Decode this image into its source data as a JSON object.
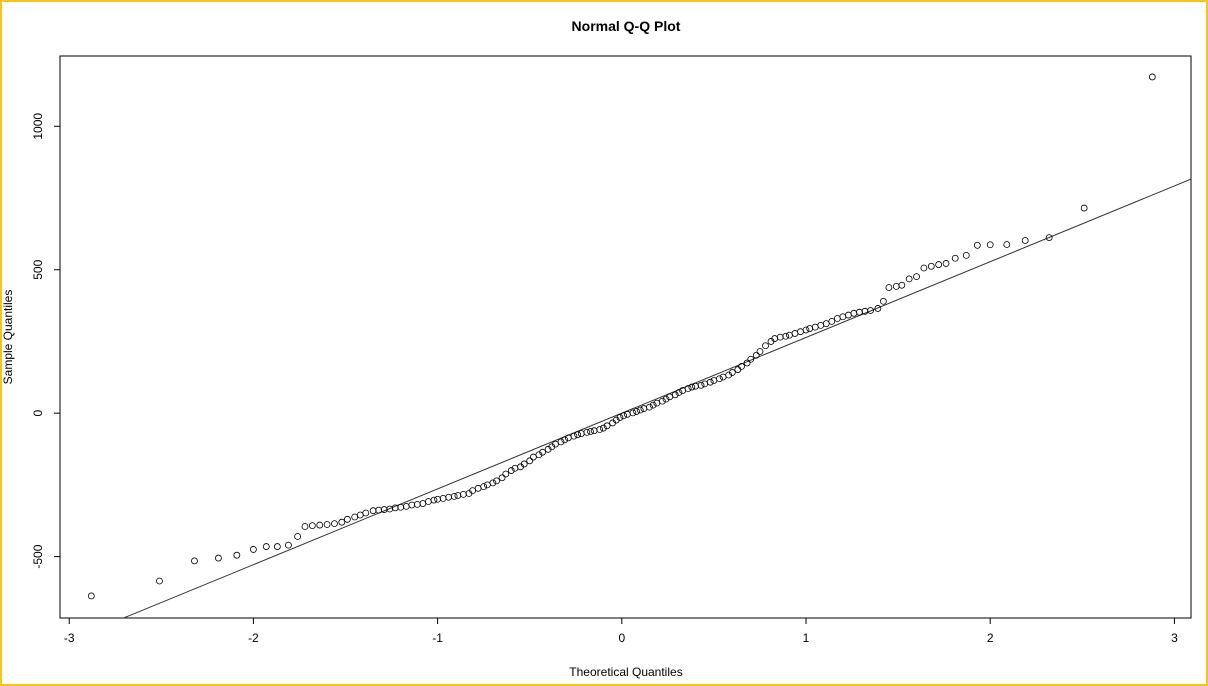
{
  "chart_data": {
    "type": "scatter",
    "title": "Normal Q-Q Plot",
    "xlabel": "Theoretical Quantiles",
    "ylabel": "Sample Quantiles",
    "xlim": [
      -3.05,
      3.09
    ],
    "ylim": [
      -714,
      1245
    ],
    "xticks": [
      -3,
      -2,
      -1,
      0,
      1,
      2,
      3
    ],
    "yticks": [
      -500,
      0,
      500,
      1000
    ],
    "grid": false,
    "legend": "none",
    "reference_line": {
      "intercept": 0,
      "slope": 264
    },
    "points": [
      [
        -2.88,
        -637
      ],
      [
        -2.51,
        -585
      ],
      [
        -2.32,
        -515
      ],
      [
        -2.19,
        -505
      ],
      [
        -2.09,
        -495
      ],
      [
        -2.0,
        -475
      ],
      [
        -1.93,
        -465
      ],
      [
        -1.87,
        -465
      ],
      [
        -1.81,
        -460
      ],
      [
        -1.76,
        -430
      ],
      [
        -1.72,
        -395
      ],
      [
        -1.68,
        -392
      ],
      [
        -1.64,
        -390
      ],
      [
        -1.6,
        -388
      ],
      [
        -1.56,
        -385
      ],
      [
        -1.52,
        -380
      ],
      [
        -1.49,
        -370
      ],
      [
        -1.45,
        -362
      ],
      [
        -1.42,
        -355
      ],
      [
        -1.39,
        -348
      ],
      [
        -1.35,
        -340
      ],
      [
        -1.32,
        -338
      ],
      [
        -1.29,
        -336
      ],
      [
        -1.26,
        -334
      ],
      [
        -1.23,
        -330
      ],
      [
        -1.2,
        -328
      ],
      [
        -1.17,
        -325
      ],
      [
        -1.14,
        -320
      ],
      [
        -1.11,
        -318
      ],
      [
        -1.08,
        -315
      ],
      [
        -1.05,
        -308
      ],
      [
        -1.02,
        -303
      ],
      [
        -1.0,
        -300
      ],
      [
        -0.97,
        -297
      ],
      [
        -0.94,
        -293
      ],
      [
        -0.91,
        -290
      ],
      [
        -0.89,
        -287
      ],
      [
        -0.86,
        -283
      ],
      [
        -0.83,
        -280
      ],
      [
        -0.81,
        -270
      ],
      [
        -0.78,
        -262
      ],
      [
        -0.75,
        -256
      ],
      [
        -0.73,
        -250
      ],
      [
        -0.7,
        -243
      ],
      [
        -0.68,
        -236
      ],
      [
        -0.65,
        -225
      ],
      [
        -0.63,
        -212
      ],
      [
        -0.6,
        -200
      ],
      [
        -0.58,
        -192
      ],
      [
        -0.55,
        -187
      ],
      [
        -0.53,
        -177
      ],
      [
        -0.5,
        -166
      ],
      [
        -0.48,
        -153
      ],
      [
        -0.45,
        -145
      ],
      [
        -0.43,
        -136
      ],
      [
        -0.4,
        -126
      ],
      [
        -0.38,
        -117
      ],
      [
        -0.36,
        -108
      ],
      [
        -0.33,
        -100
      ],
      [
        -0.31,
        -93
      ],
      [
        -0.29,
        -86
      ],
      [
        -0.26,
        -80
      ],
      [
        -0.24,
        -75
      ],
      [
        -0.22,
        -71
      ],
      [
        -0.19,
        -67
      ],
      [
        -0.17,
        -64
      ],
      [
        -0.15,
        -61
      ],
      [
        -0.12,
        -57
      ],
      [
        -0.1,
        -52
      ],
      [
        -0.08,
        -44
      ],
      [
        -0.05,
        -34
      ],
      [
        -0.03,
        -24
      ],
      [
        -0.01,
        -15
      ],
      [
        0.01,
        -9
      ],
      [
        0.03,
        -4
      ],
      [
        0.06,
        1
      ],
      [
        0.08,
        6
      ],
      [
        0.1,
        11
      ],
      [
        0.12,
        16
      ],
      [
        0.15,
        21
      ],
      [
        0.17,
        28
      ],
      [
        0.19,
        35
      ],
      [
        0.22,
        42
      ],
      [
        0.24,
        49
      ],
      [
        0.26,
        57
      ],
      [
        0.29,
        64
      ],
      [
        0.31,
        72
      ],
      [
        0.33,
        79
      ],
      [
        0.36,
        86
      ],
      [
        0.38,
        91
      ],
      [
        0.4,
        94
      ],
      [
        0.43,
        97
      ],
      [
        0.45,
        102
      ],
      [
        0.48,
        108
      ],
      [
        0.5,
        114
      ],
      [
        0.53,
        120
      ],
      [
        0.55,
        126
      ],
      [
        0.58,
        133
      ],
      [
        0.6,
        142
      ],
      [
        0.63,
        152
      ],
      [
        0.65,
        163
      ],
      [
        0.68,
        175
      ],
      [
        0.7,
        188
      ],
      [
        0.73,
        202
      ],
      [
        0.75,
        215
      ],
      [
        0.78,
        235
      ],
      [
        0.81,
        250
      ],
      [
        0.83,
        260
      ],
      [
        0.86,
        265
      ],
      [
        0.89,
        268
      ],
      [
        0.91,
        272
      ],
      [
        0.94,
        278
      ],
      [
        0.97,
        284
      ],
      [
        1.0,
        290
      ],
      [
        1.02,
        295
      ],
      [
        1.05,
        300
      ],
      [
        1.08,
        306
      ],
      [
        1.11,
        312
      ],
      [
        1.14,
        320
      ],
      [
        1.17,
        330
      ],
      [
        1.2,
        336
      ],
      [
        1.23,
        342
      ],
      [
        1.26,
        348
      ],
      [
        1.29,
        352
      ],
      [
        1.32,
        355
      ],
      [
        1.35,
        358
      ],
      [
        1.39,
        365
      ],
      [
        1.42,
        390
      ],
      [
        1.45,
        438
      ],
      [
        1.49,
        442
      ],
      [
        1.52,
        446
      ],
      [
        1.56,
        468
      ],
      [
        1.6,
        476
      ],
      [
        1.64,
        506
      ],
      [
        1.68,
        512
      ],
      [
        1.72,
        518
      ],
      [
        1.76,
        522
      ],
      [
        1.81,
        540
      ],
      [
        1.87,
        550
      ],
      [
        1.93,
        585
      ],
      [
        2.0,
        587
      ],
      [
        2.09,
        588
      ],
      [
        2.19,
        602
      ],
      [
        2.32,
        612
      ],
      [
        2.51,
        715
      ],
      [
        2.88,
        1172
      ]
    ]
  }
}
